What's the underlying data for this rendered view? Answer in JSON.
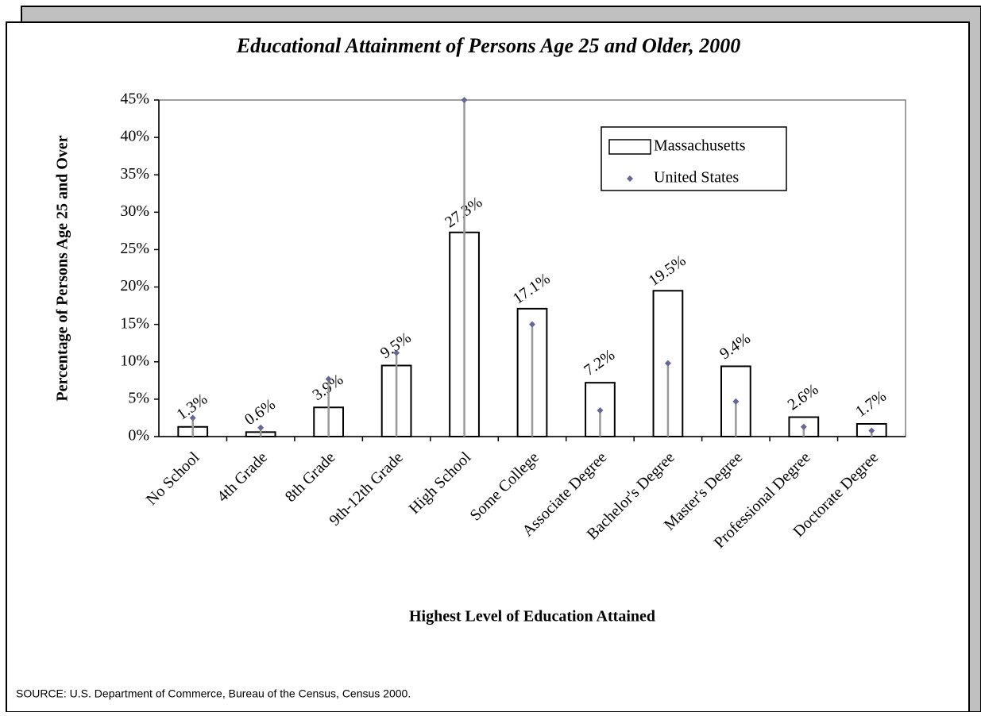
{
  "chart_data": {
    "type": "bar",
    "title": "Educational Attainment of Persons Age 25 and Older, 2000",
    "x_label": "Highest Level of Education Attained",
    "y_label": "Percentage of Persons Age 25 and Over",
    "source": "SOURCE: U.S. Department of Commerce, Bureau of the Census, Census 2000.",
    "categories": [
      "No School",
      "4th Grade",
      "8th Grade",
      "9th-12th Grade",
      "High School",
      "Some College",
      "Associate Degree",
      "Bachelor's Degree",
      "Master's Degree",
      "Professional Degree",
      "Doctorate Degree"
    ],
    "series": [
      {
        "name": "Massachusetts",
        "type": "bar",
        "color": "#ffffff",
        "values": [
          1.3,
          0.6,
          3.9,
          9.5,
          27.3,
          17.1,
          7.2,
          19.5,
          9.4,
          2.6,
          1.7
        ],
        "value_labels": [
          "1.3%",
          "0.6%",
          "3.9%",
          "9.5%",
          "27.3%",
          "17.1%",
          "7.2%",
          "19.5%",
          "9.4%",
          "2.6%",
          "1.7%"
        ]
      },
      {
        "name": "United States",
        "type": "scatter",
        "color": "#666699",
        "values": [
          2.5,
          1.2,
          7.7,
          11.2,
          45,
          15.0,
          3.5,
          9.8,
          4.7,
          1.3,
          0.8
        ]
      }
    ],
    "ylim": [
      0,
      45
    ],
    "yticks": [
      {
        "value": 0,
        "label": "0%"
      },
      {
        "value": 5,
        "label": "5%"
      },
      {
        "value": 10,
        "label": "10%"
      },
      {
        "value": 15,
        "label": "15%"
      },
      {
        "value": 20,
        "label": "20%"
      },
      {
        "value": 25,
        "label": "25%"
      },
      {
        "value": 30,
        "label": "30%"
      },
      {
        "value": 35,
        "label": "35%"
      },
      {
        "value": 40,
        "label": "40%"
      },
      {
        "value": 45,
        "label": "45%"
      }
    ],
    "grid": false,
    "legend": "top-right"
  }
}
